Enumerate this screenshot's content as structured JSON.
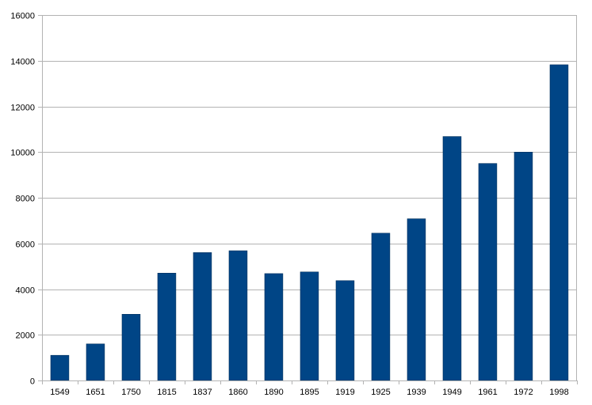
{
  "chart_data": {
    "type": "bar",
    "title": "",
    "xlabel": "",
    "ylabel": "",
    "categories": [
      "1549",
      "1651",
      "1750",
      "1815",
      "1837",
      "1860",
      "1890",
      "1895",
      "1919",
      "1925",
      "1939",
      "1949",
      "1961",
      "1972",
      "1998"
    ],
    "values": [
      1100,
      1600,
      2900,
      4700,
      5600,
      5680,
      4680,
      4750,
      4370,
      6450,
      7080,
      10680,
      9500,
      10000,
      13820
    ],
    "ylim": [
      0,
      16000
    ],
    "yticks": [
      "0",
      "2000",
      "4000",
      "6000",
      "8000",
      "10000",
      "12000",
      "14000",
      "16000"
    ],
    "grid": true,
    "legend": "none",
    "bar_color": "#004586",
    "grid_color": "#b3b3b3"
  }
}
